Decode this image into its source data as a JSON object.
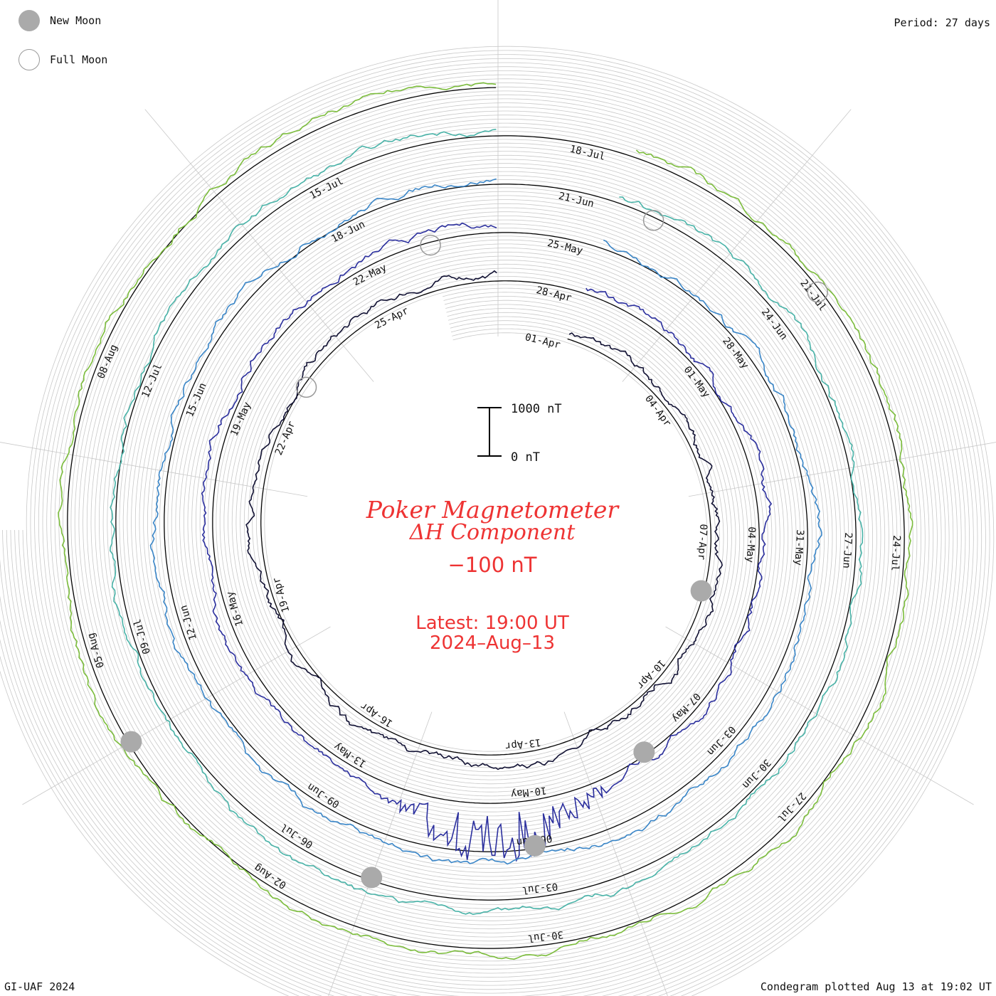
{
  "legend": {
    "new_moon_label": "New Moon",
    "full_moon_label": "Full Moon",
    "new_moon_color": "#aaaaaa",
    "full_moon_color": "#999999"
  },
  "period_label": "Period: 27 days",
  "footer": {
    "left": "GI-UAF 2024",
    "right": "Condegram plotted Aug 13 at 19:02 UT"
  },
  "center": {
    "title_line1": "Poker Magnetometer",
    "title_line2": "ΔH Component",
    "baseline_value": "−100 nT",
    "latest_line1": "Latest: 19:00 UT",
    "latest_line2": "2024–Aug–13",
    "scale_top_label": "1000 nT",
    "scale_bottom_label": "0 nT",
    "text_color": "#ee3333"
  },
  "chart_data": {
    "type": "line",
    "subtype": "condegram-spiral",
    "period_days": 27,
    "scale_nT": [
      0,
      1000
    ],
    "baseline_nT": -100,
    "start_date": "2024-03-31",
    "end_date": "2024-08-13",
    "series": [
      {
        "color": "#111133",
        "start_date": "2024-03-31",
        "end_date": "2024-04-27"
      },
      {
        "color": "#2b2f9e",
        "start_date": "2024-04-27",
        "end_date": "2024-05-24"
      },
      {
        "color": "#3a86c8",
        "start_date": "2024-05-24",
        "end_date": "2024-06-20"
      },
      {
        "color": "#49b3a8",
        "start_date": "2024-06-20",
        "end_date": "2024-07-17"
      },
      {
        "color": "#7cbd3c",
        "start_date": "2024-07-17",
        "end_date": "2024-08-13"
      },
      {
        "color": "#c8a41e"
      },
      {
        "color": "#b8401a"
      }
    ],
    "date_labels": [
      {
        "label": "01-Apr"
      },
      {
        "label": "04-Apr"
      },
      {
        "label": "07-Apr"
      },
      {
        "label": "10-Apr"
      },
      {
        "label": "13-Apr"
      },
      {
        "label": "16-Apr"
      },
      {
        "label": "19-Apr"
      },
      {
        "label": "22-Apr"
      },
      {
        "label": "25-Apr"
      },
      {
        "label": "28-Apr"
      },
      {
        "label": "01-May"
      },
      {
        "label": "04-May"
      },
      {
        "label": "07-May"
      },
      {
        "label": "10-May"
      },
      {
        "label": "13-May"
      },
      {
        "label": "16-May"
      },
      {
        "label": "19-May"
      },
      {
        "label": "22-May"
      },
      {
        "label": "25-May"
      },
      {
        "label": "28-May"
      },
      {
        "label": "31-May"
      },
      {
        "label": "03-Jun"
      },
      {
        "label": "06-Jun"
      },
      {
        "label": "09-Jun"
      },
      {
        "label": "12-Jun"
      },
      {
        "label": "15-Jun"
      },
      {
        "label": "18-Jun"
      },
      {
        "label": "21-Jun"
      },
      {
        "label": "24-Jun"
      },
      {
        "label": "27-Jun"
      },
      {
        "label": "30-Jun"
      },
      {
        "label": "03-Jul"
      },
      {
        "label": "06-Jul"
      },
      {
        "label": "09-Jul"
      },
      {
        "label": "12-Jul"
      },
      {
        "label": "15-Jul"
      },
      {
        "label": "18-Jul"
      },
      {
        "label": "21-Jul"
      },
      {
        "label": "24-Jul"
      },
      {
        "label": "27-Jul"
      },
      {
        "label": "30-Jul"
      },
      {
        "label": "02-Aug"
      },
      {
        "label": "05-Aug"
      },
      {
        "label": "08-Aug"
      }
    ],
    "moon_phases": [
      {
        "phase": "new",
        "date": "2024-04-08"
      },
      {
        "phase": "full",
        "date": "2024-04-23"
      },
      {
        "phase": "new",
        "date": "2024-05-08"
      },
      {
        "phase": "full",
        "date": "2024-05-23"
      },
      {
        "phase": "new",
        "date": "2024-06-06"
      },
      {
        "phase": "full",
        "date": "2024-06-22"
      },
      {
        "phase": "new",
        "date": "2024-07-05"
      },
      {
        "phase": "full",
        "date": "2024-07-21"
      },
      {
        "phase": "new",
        "date": "2024-08-04"
      }
    ],
    "events": [
      {
        "description": "storm",
        "date": "2024-05-10",
        "peak_nT": 900
      },
      {
        "date": "2024-05-11",
        "peak_nT": 1000
      }
    ]
  }
}
